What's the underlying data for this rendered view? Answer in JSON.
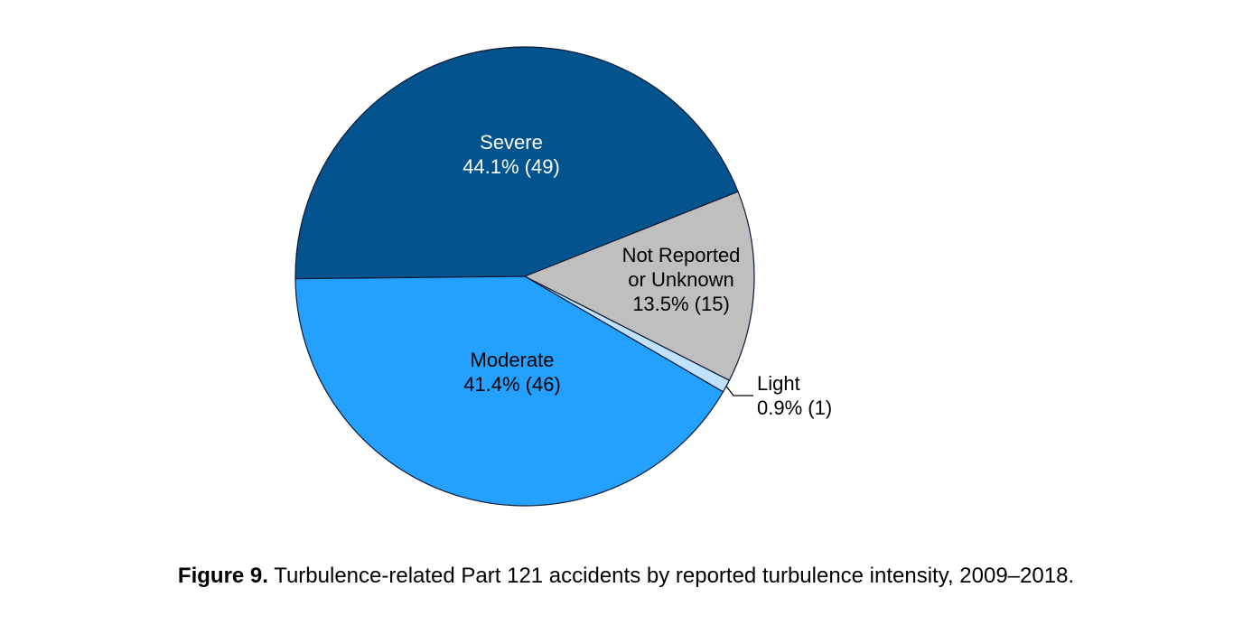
{
  "chart_data": {
    "type": "pie",
    "title": "",
    "slices": [
      {
        "name": "Severe",
        "percent_label": "44.1% (49)",
        "percent": 44.1,
        "count": 49,
        "color": "#02538e",
        "text_color": "#ffffff"
      },
      {
        "name": "Not Reported or Unknown",
        "name_lines": [
          "Not Reported",
          "or Unknown"
        ],
        "percent_label": "13.5% (15)",
        "percent": 13.5,
        "count": 15,
        "color": "#bfbfbf",
        "text_color": "#000000"
      },
      {
        "name": "Light",
        "percent_label": "0.9% (1)",
        "percent": 0.9,
        "count": 1,
        "color": "#bfe3ff",
        "text_color": "#000000"
      },
      {
        "name": "Moderate",
        "percent_label": "41.4% (46)",
        "percent": 41.4,
        "count": 46,
        "color": "#24a1ff",
        "text_color": "#000000"
      }
    ]
  },
  "caption": {
    "figure_label": "Figure 9.",
    "text": " Turbulence-related Part 121 accidents by reported turbulence intensity, 2009–2018."
  }
}
